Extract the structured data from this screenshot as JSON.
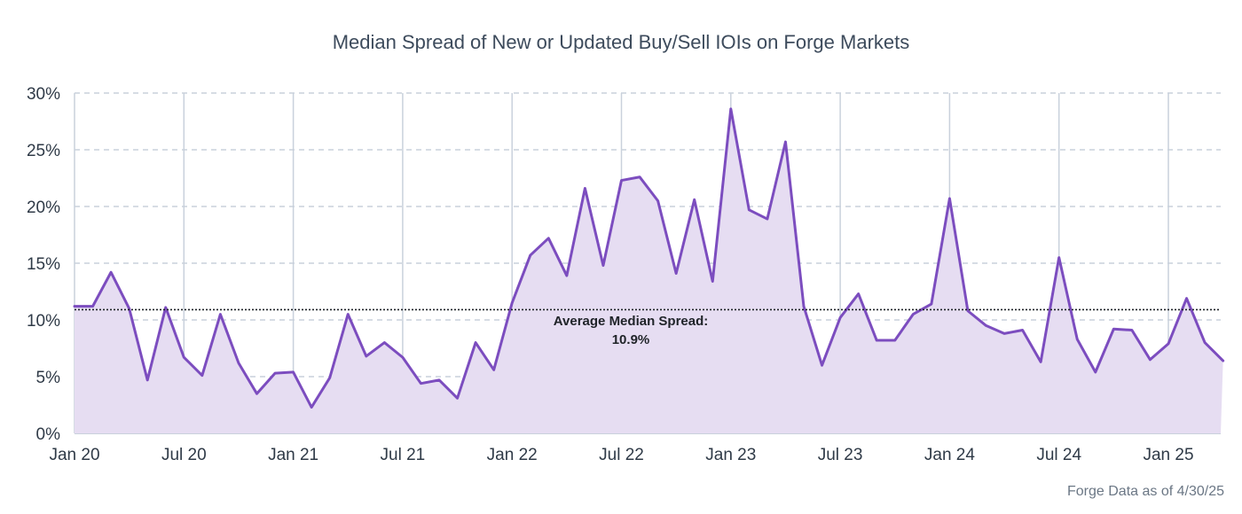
{
  "chart_data": {
    "type": "area",
    "title": "Median Spread of New or Updated Buy/Sell IOIs on Forge Markets",
    "xlabel": "",
    "ylabel": "",
    "x_tick_labels": [
      "Jan 20",
      "Jul 20",
      "Jan 21",
      "Jul 21",
      "Jan 22",
      "Jul 22",
      "Jan 23",
      "Jul 23",
      "Jan 24",
      "Jul 24",
      "Jan 25"
    ],
    "y_tick_labels": [
      "0%",
      "5%",
      "10%",
      "15%",
      "20%",
      "25%",
      "30%"
    ],
    "ylim": [
      0,
      30
    ],
    "y_unit": "%",
    "grid": true,
    "legend": "none",
    "series": [
      {
        "values": [
          11.2,
          11.2,
          14.2,
          11.0,
          4.7,
          11.1,
          6.7,
          5.1,
          10.5,
          6.2,
          3.5,
          5.3,
          5.4,
          2.3,
          4.9,
          10.5,
          6.8,
          8.0,
          6.7,
          4.4,
          4.7,
          3.1,
          8.0,
          5.6,
          11.5,
          15.7,
          17.2,
          13.9,
          21.6,
          14.8,
          22.3,
          22.6,
          20.5,
          14.1,
          20.6,
          13.4,
          28.6,
          19.7,
          18.9,
          25.7,
          11.2,
          6.0,
          10.2,
          12.3,
          8.2,
          8.2,
          10.5,
          11.4,
          20.7,
          10.8,
          9.5,
          8.8,
          9.1,
          6.3,
          15.5,
          8.3,
          5.4,
          9.2,
          9.1,
          6.5,
          7.9,
          11.9,
          8.0,
          6.4
        ]
      }
    ],
    "reference_line": {
      "value": 10.9,
      "label_line1": "Average Median Spread:",
      "label_line2": "10.9%"
    },
    "colors": {
      "line": "#7c4dbf",
      "fill": "#e6ddf2",
      "avg_line": "#1f2328",
      "grid_vertical": "#c9d1dc",
      "grid_horizontal": "#c9d1dc",
      "axis": "#c9d1dc"
    }
  },
  "footer": {
    "source_note": "Forge Data as of 4/30/25"
  }
}
